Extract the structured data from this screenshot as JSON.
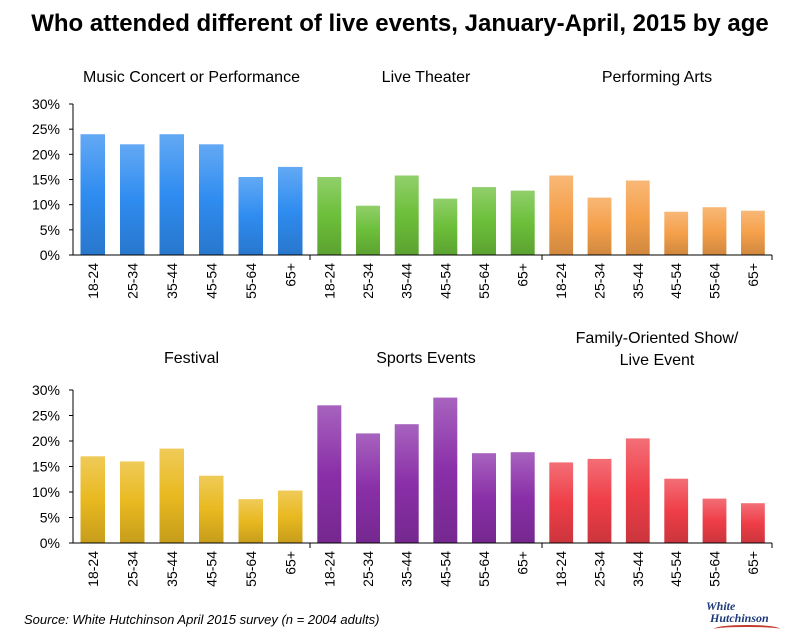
{
  "title": "Who attended different of live events, January-April, 2015 by age",
  "source": "Source: White Hutchinson April 2015 survey (n = 2004 adults)",
  "logo": {
    "line1": "White",
    "line2": "Hutchinson"
  },
  "chart_data": [
    {
      "type": "bar",
      "title": "Music Concert or Performance",
      "categories": [
        "18-24",
        "25-34",
        "35-44",
        "45-54",
        "55-64",
        "65+"
      ],
      "values": [
        24,
        22,
        24,
        22,
        15.5,
        17.5
      ],
      "y_ticks": [
        "0%",
        "5%",
        "10%",
        "15%",
        "20%",
        "25%",
        "30%"
      ],
      "ylim": [
        0,
        30
      ],
      "color": "#2f8cf0"
    },
    {
      "type": "bar",
      "title": "Live Theater",
      "categories": [
        "18-24",
        "25-34",
        "35-44",
        "45-54",
        "55-64",
        "65+"
      ],
      "values": [
        15.5,
        9.8,
        15.8,
        11.2,
        13.5,
        12.8
      ],
      "ylim": [
        0,
        30
      ],
      "color": "#6cbf3a"
    },
    {
      "type": "bar",
      "title": "Performing Arts",
      "categories": [
        "18-24",
        "25-34",
        "35-44",
        "45-54",
        "55-64",
        "65+"
      ],
      "values": [
        15.8,
        11.4,
        14.8,
        8.6,
        9.5,
        8.8
      ],
      "ylim": [
        0,
        30
      ],
      "color": "#f5a04a"
    },
    {
      "type": "bar",
      "title": "Festival",
      "categories": [
        "18-24",
        "25-34",
        "35-44",
        "45-54",
        "55-64",
        "65+"
      ],
      "values": [
        17,
        16,
        18.5,
        13.2,
        8.6,
        10.3
      ],
      "y_ticks": [
        "0%",
        "5%",
        "10%",
        "15%",
        "20%",
        "25%",
        "30%"
      ],
      "ylim": [
        0,
        30
      ],
      "color": "#e9b920"
    },
    {
      "type": "bar",
      "title": "Sports Events",
      "categories": [
        "18-24",
        "25-34",
        "35-44",
        "45-54",
        "55-64",
        "65+"
      ],
      "values": [
        27,
        21.5,
        23.3,
        28.5,
        17.6,
        17.8
      ],
      "ylim": [
        0,
        30
      ],
      "color": "#8a2fa8"
    },
    {
      "type": "bar",
      "title": "Family-Oriented Show/ Live Event",
      "title_lines": [
        "Family-Oriented Show/",
        "Live Event"
      ],
      "categories": [
        "18-24",
        "25-34",
        "35-44",
        "45-54",
        "55-64",
        "65+"
      ],
      "values": [
        15.8,
        16.5,
        20.5,
        12.6,
        8.7,
        7.8
      ],
      "ylim": [
        0,
        30
      ],
      "color": "#ef3e48"
    }
  ]
}
